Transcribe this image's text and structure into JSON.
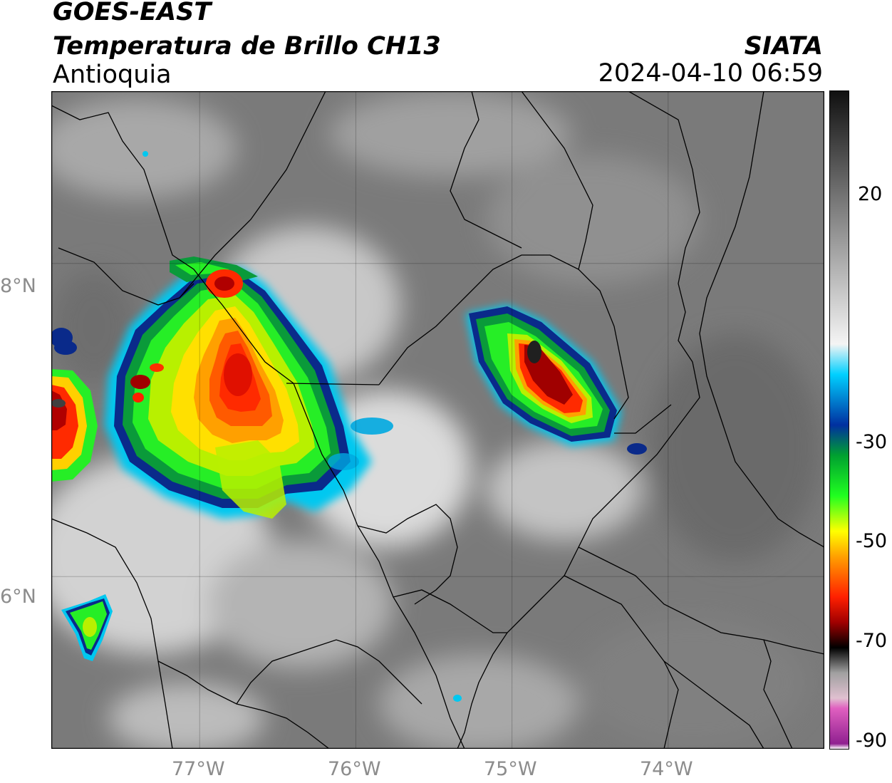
{
  "header": {
    "satellite": "GOES-EAST",
    "product": "Temperatura de Brillo CH13",
    "region": "Antioquia",
    "agency": "SIATA",
    "datetime": "2024-04-10 06:59"
  },
  "map": {
    "lon_range": [
      -77.95,
      -73.0
    ],
    "lat_range": [
      4.9,
      9.1
    ],
    "lon_ticks": [
      {
        "value": -77,
        "label": "77°W"
      },
      {
        "value": -76,
        "label": "76°W"
      },
      {
        "value": -75,
        "label": "75°W"
      },
      {
        "value": -74,
        "label": "74°W"
      }
    ],
    "lat_ticks": [
      {
        "value": 8,
        "label": "8°N"
      },
      {
        "value": 6,
        "label": "6°N"
      }
    ],
    "grid": true,
    "cloud_systems": [
      {
        "name": "western-convective-system",
        "center_lon": -77.0,
        "center_lat": 7.4,
        "min_temp_c": -65
      },
      {
        "name": "central-convective-system",
        "center_lon": -74.8,
        "center_lat": 7.4,
        "min_temp_c": -70
      },
      {
        "name": "southwest-cell",
        "center_lon": -77.6,
        "center_lat": 5.8,
        "min_temp_c": -45
      }
    ]
  },
  "colorbar": {
    "range": [
      -90,
      40
    ],
    "ticks": [
      {
        "value": 20,
        "label": "20"
      },
      {
        "value": -30,
        "label": "-30"
      },
      {
        "value": -50,
        "label": "-50"
      },
      {
        "value": -70,
        "label": "-70"
      },
      {
        "value": -90,
        "label": "-90"
      }
    ],
    "stops": [
      {
        "value": 40,
        "color": "#101010"
      },
      {
        "value": 20,
        "color": "#707070"
      },
      {
        "value": -10,
        "color": "#f4f4f4"
      },
      {
        "value": -16,
        "color": "#00d0ff"
      },
      {
        "value": -26,
        "color": "#0030a0"
      },
      {
        "value": -32,
        "color": "#00a030"
      },
      {
        "value": -40,
        "color": "#20ff20"
      },
      {
        "value": -47,
        "color": "#ffff00"
      },
      {
        "value": -52,
        "color": "#ffa000"
      },
      {
        "value": -60,
        "color": "#ff2000"
      },
      {
        "value": -65,
        "color": "#a00000"
      },
      {
        "value": -70,
        "color": "#000000"
      },
      {
        "value": -75,
        "color": "#a0a0a0"
      },
      {
        "value": -80,
        "color": "#e0c0d0"
      },
      {
        "value": -82,
        "color": "#e060c0"
      },
      {
        "value": -89,
        "color": "#902090"
      },
      {
        "value": -90,
        "color": "#ffffff"
      }
    ]
  }
}
